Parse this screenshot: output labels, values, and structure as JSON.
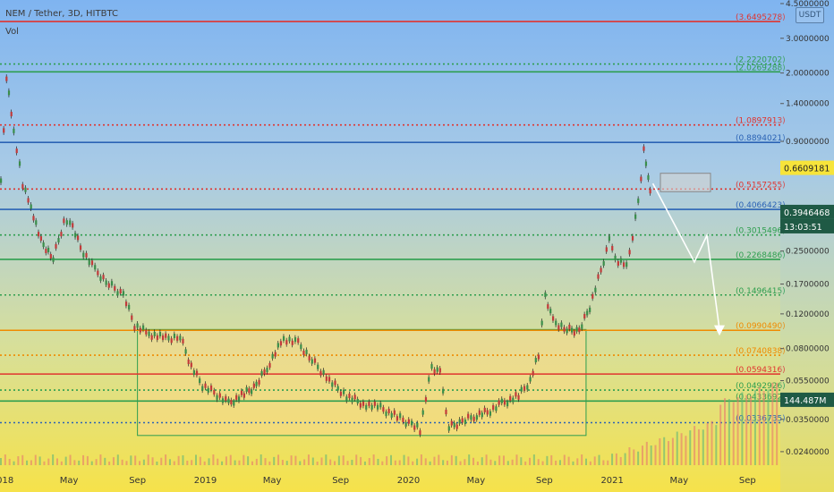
{
  "header": {
    "title": "NEM / Tether, 3D, HITBTC",
    "indicator": "Vol",
    "currency": "USDT"
  },
  "colors": {
    "green": "#2e9e4f",
    "red": "#e0342f",
    "blue": "#2b63b5",
    "orange": "#f08a00",
    "yellow": "#f7e43a",
    "arrow": "#ffffff"
  },
  "chart_data": {
    "type": "candlestick",
    "title": "NEM / Tether, 3D, HITBTC",
    "scale": "log",
    "ylim": [
      0.0205,
      4.5
    ],
    "y_tick_labels": [
      "4.5000000",
      "3.0000000",
      "2.0000000",
      "1.4000000",
      "0.9000000",
      "0.2500000",
      "0.1700000",
      "0.1200000",
      "0.0800000",
      "0.0550000",
      "0.0350000",
      "0.0240000"
    ],
    "y_tick_values": [
      4.5,
      3.0,
      2.0,
      1.4,
      0.9,
      0.25,
      0.17,
      0.12,
      0.08,
      0.055,
      0.035,
      0.024
    ],
    "x_tick_labels": [
      "2018",
      "May",
      "Sep",
      "2019",
      "May",
      "Sep",
      "2020",
      "May",
      "Sep",
      "2021",
      "May",
      "Sep"
    ],
    "x_tick_dates": [
      "2018-01-01",
      "2018-05-01",
      "2018-09-01",
      "2019-01-01",
      "2019-05-01",
      "2019-09-01",
      "2020-01-01",
      "2020-05-01",
      "2020-09-01",
      "2021-01-01",
      "2021-05-01",
      "2021-09-01"
    ],
    "x_range": [
      "2017-12-28",
      "2021-10-30"
    ],
    "price_path": [
      [
        "2017-12-28",
        0.55
      ],
      [
        "2018-01-07",
        1.9
      ],
      [
        "2018-01-20",
        1.0
      ],
      [
        "2018-02-05",
        0.55
      ],
      [
        "2018-02-20",
        0.42
      ],
      [
        "2018-03-10",
        0.28
      ],
      [
        "2018-04-01",
        0.23
      ],
      [
        "2018-04-20",
        0.35
      ],
      [
        "2018-05-01",
        0.36
      ],
      [
        "2018-05-20",
        0.26
      ],
      [
        "2018-06-15",
        0.2
      ],
      [
        "2018-07-10",
        0.17
      ],
      [
        "2018-08-05",
        0.15
      ],
      [
        "2018-08-25",
        0.105
      ],
      [
        "2018-09-20",
        0.095
      ],
      [
        "2018-10-20",
        0.09
      ],
      [
        "2018-11-15",
        0.092
      ],
      [
        "2018-12-05",
        0.065
      ],
      [
        "2018-12-25",
        0.052
      ],
      [
        "2019-01-15",
        0.048
      ],
      [
        "2019-02-10",
        0.042
      ],
      [
        "2019-03-10",
        0.047
      ],
      [
        "2019-04-01",
        0.052
      ],
      [
        "2019-04-25",
        0.068
      ],
      [
        "2019-05-20",
        0.09
      ],
      [
        "2019-06-15",
        0.085
      ],
      [
        "2019-07-10",
        0.07
      ],
      [
        "2019-08-10",
        0.055
      ],
      [
        "2019-09-10",
        0.046
      ],
      [
        "2019-10-10",
        0.042
      ],
      [
        "2019-11-10",
        0.04
      ],
      [
        "2019-12-10",
        0.036
      ],
      [
        "2020-01-05",
        0.033
      ],
      [
        "2020-01-20",
        0.031
      ],
      [
        "2020-02-10",
        0.065
      ],
      [
        "2020-02-25",
        0.06
      ],
      [
        "2020-03-12",
        0.032
      ],
      [
        "2020-04-05",
        0.034
      ],
      [
        "2020-05-01",
        0.037
      ],
      [
        "2020-05-20",
        0.038
      ],
      [
        "2020-06-15",
        0.042
      ],
      [
        "2020-07-15",
        0.046
      ],
      [
        "2020-08-05",
        0.055
      ],
      [
        "2020-08-20",
        0.075
      ],
      [
        "2020-09-01",
        0.15
      ],
      [
        "2020-09-15",
        0.11
      ],
      [
        "2020-10-10",
        0.1
      ],
      [
        "2020-11-01",
        0.098
      ],
      [
        "2020-11-20",
        0.13
      ],
      [
        "2020-12-10",
        0.2
      ],
      [
        "2020-12-25",
        0.28
      ],
      [
        "2021-01-10",
        0.22
      ],
      [
        "2021-01-25",
        0.21
      ],
      [
        "2021-02-05",
        0.3
      ],
      [
        "2021-02-15",
        0.45
      ],
      [
        "2021-02-25",
        0.8
      ],
      [
        "2021-03-05",
        0.6
      ],
      [
        "2021-03-12",
        0.3946468
      ]
    ],
    "volume_bars_note": "volume histogram along bottom",
    "horizontal_levels": [
      {
        "label": "3.6495278",
        "value": 3.6495278,
        "color": "red"
      },
      {
        "label": "2.2220702",
        "value": 2.2220702,
        "color": "green"
      },
      {
        "label": "2.0269288",
        "value": 2.0269288,
        "color": "green"
      },
      {
        "label": "1.0897913",
        "value": 1.0897913,
        "color": "red"
      },
      {
        "label": "0.8894021",
        "value": 0.8894021,
        "color": "blue"
      },
      {
        "label": "0.5157255",
        "value": 0.5157255,
        "color": "red"
      },
      {
        "label": "0.4066423",
        "value": 0.4066423,
        "color": "blue"
      },
      {
        "label": "0.3015496",
        "value": 0.3015496,
        "color": "green"
      },
      {
        "label": "0.2268486",
        "value": 0.2268486,
        "color": "green"
      },
      {
        "label": "0.1496415",
        "value": 0.1496415,
        "color": "green"
      },
      {
        "label": "0.0990490",
        "value": 0.099049,
        "color": "orange"
      },
      {
        "label": "0.0740838",
        "value": 0.0740838,
        "color": "orange"
      },
      {
        "label": "0.0594316",
        "value": 0.0594316,
        "color": "red"
      },
      {
        "label": "0.0492926",
        "value": 0.0492926,
        "color": "green"
      },
      {
        "label": "0.0433692",
        "value": 0.0433692,
        "color": "green"
      },
      {
        "label": "0.0336735",
        "value": 0.0336735,
        "color": "blue"
      }
    ],
    "current_price": {
      "label": "0.3946468",
      "value": 0.3946468,
      "countdown": "13:03:51"
    },
    "marker_price": {
      "label": "0.6609181",
      "value": 0.6609181
    },
    "volume_label": {
      "label": "144.487M"
    },
    "range_box": {
      "from": "2018-09-01",
      "to": "2020-11-15",
      "low": 0.029,
      "high": 0.1
    }
  }
}
